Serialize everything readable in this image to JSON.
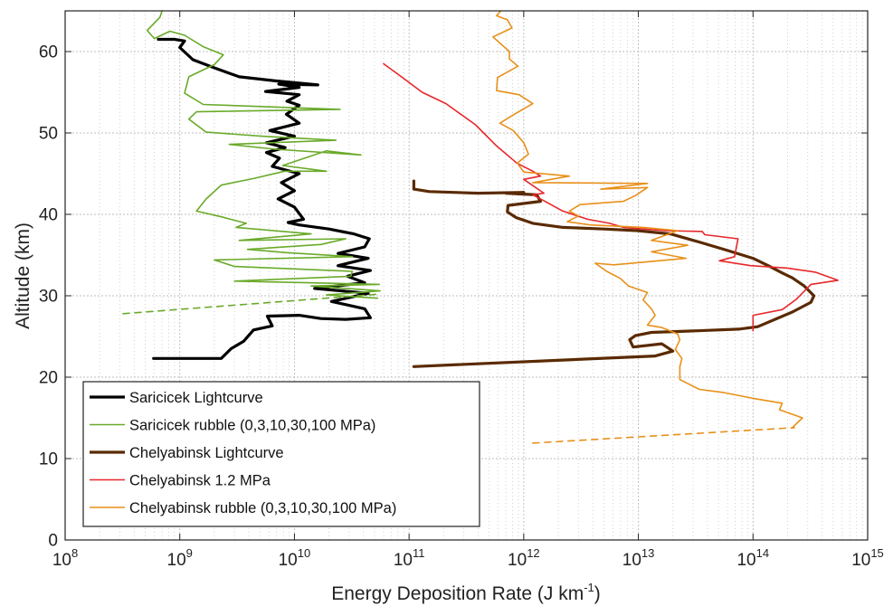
{
  "chart_data": {
    "type": "line",
    "title": "",
    "xlabel": "Energy Deposition Rate (J km",
    "xlabel_sup": "-1",
    "xlabel_suffix": ")",
    "ylabel": "Altitude (km)",
    "xscale": "log",
    "xlim": [
      100000000.0,
      1000000000000000.0
    ],
    "ylim": [
      0,
      65
    ],
    "grid": "minor-x-dotted",
    "legend_position": "lower-left",
    "x_tick_labels": [
      {
        "base": "10",
        "exp": "8"
      },
      {
        "base": "10",
        "exp": "9"
      },
      {
        "base": "10",
        "exp": "10"
      },
      {
        "base": "10",
        "exp": "11"
      },
      {
        "base": "10",
        "exp": "12"
      },
      {
        "base": "10",
        "exp": "13"
      },
      {
        "base": "10",
        "exp": "14"
      },
      {
        "base": "10",
        "exp": "15"
      }
    ],
    "y_tick_labels": [
      "0",
      "10",
      "20",
      "30",
      "40",
      "50",
      "60"
    ],
    "series": [
      {
        "name": "Saricicek Lightcurve",
        "color": "#000000",
        "width": 3.2,
        "dash": "",
        "points": [
          [
            590000000.0,
            22.3
          ],
          [
            2300000000.0,
            22.3
          ],
          [
            2800000000.0,
            23.5
          ],
          [
            3600000000.0,
            24.4
          ],
          [
            4400000000.0,
            25.8
          ],
          [
            6400000000.0,
            26.3
          ],
          [
            5800000000.0,
            27.5
          ],
          [
            11000000000.0,
            27.6
          ],
          [
            17000000000.0,
            27.2
          ],
          [
            28000000000.0,
            27.1
          ],
          [
            46000000000.0,
            27.3
          ],
          [
            41000000000.0,
            28.4
          ],
          [
            21000000000.0,
            29.3
          ],
          [
            44000000000.0,
            30.3
          ],
          [
            15000000000.0,
            30.9
          ],
          [
            41000000000.0,
            31.6
          ],
          [
            29000000000.0,
            32.4
          ],
          [
            46000000000.0,
            33.1
          ],
          [
            24000000000.0,
            33.7
          ],
          [
            44000000000.0,
            34.6
          ],
          [
            24000000000.0,
            35.2
          ],
          [
            41000000000.0,
            36.0
          ],
          [
            45000000000.0,
            37.0
          ],
          [
            33000000000.0,
            37.6
          ],
          [
            20000000000.0,
            38.2
          ],
          [
            11000000000.0,
            38.7
          ],
          [
            8800000000.0,
            39.0
          ],
          [
            12000000000.0,
            39.4
          ],
          [
            10000000000.0,
            40.9
          ],
          [
            7200000000.0,
            41.9
          ],
          [
            10000000000.0,
            42.9
          ],
          [
            7700000000.0,
            43.9
          ],
          [
            11000000000.0,
            45.0
          ],
          [
            6400000000.0,
            45.9
          ],
          [
            7400000000.0,
            46.9
          ],
          [
            5700000000.0,
            47.6
          ],
          [
            8300000000.0,
            48.2
          ],
          [
            5700000000.0,
            48.8
          ],
          [
            10000000000.0,
            49.6
          ],
          [
            6100000000.0,
            50.3
          ],
          [
            11000000000.0,
            51.2
          ],
          [
            8500000000.0,
            52.3
          ],
          [
            11000000000.0,
            53.4
          ],
          [
            8600000000.0,
            53.9
          ],
          [
            11000000000.0,
            54.7
          ],
          [
            5600000000.0,
            55.1
          ],
          [
            11000000000.0,
            55.6
          ],
          [
            7300000000.0,
            56.0
          ],
          [
            16000000000.0,
            55.9
          ],
          [
            6800000000.0,
            56.4
          ],
          [
            3300000000.0,
            56.9
          ],
          [
            2000000000.0,
            58.0
          ],
          [
            1300000000.0,
            59.0
          ],
          [
            1000000000.0,
            60.5
          ],
          [
            1100000000.0,
            61.3
          ],
          [
            900000000.0,
            61.5
          ],
          [
            650000000.0,
            61.5
          ]
        ]
      },
      {
        "name": "Saricicek rubble (0,3,10,30,100 MPa)",
        "color": "#6aaa2a",
        "width": 1.6,
        "dash": "",
        "points": [
          [
            53000000000.0,
            29.7
          ],
          [
            19000000000.0,
            30.1
          ],
          [
            56000000000.0,
            30.6
          ],
          [
            14000000000.0,
            31.2
          ],
          [
            55000000000.0,
            31.4
          ],
          [
            13000000000.0,
            31.6
          ],
          [
            3000000000.0,
            31.8
          ],
          [
            31000000000.0,
            32.4
          ],
          [
            32000000000.0,
            33.0
          ],
          [
            3000000000.0,
            33.6
          ],
          [
            2000000000.0,
            34.4
          ],
          [
            32000000000.0,
            34.8
          ],
          [
            8500000000.0,
            35.3
          ],
          [
            3900000000.0,
            35.7
          ],
          [
            17000000000.0,
            36.3
          ],
          [
            28000000000.0,
            37.0
          ],
          [
            3300000000.0,
            36.8
          ],
          [
            14000000000.0,
            37.6
          ],
          [
            3100000000.0,
            38.4
          ],
          [
            3800000000.0,
            38.9
          ],
          [
            2300000000.0,
            39.7
          ],
          [
            1400000000.0,
            40.4
          ],
          [
            1700000000.0,
            41.9
          ],
          [
            2300000000.0,
            43.6
          ],
          [
            4400000000.0,
            44.4
          ],
          [
            8200000000.0,
            45.3
          ],
          [
            19000000000.0,
            45.3
          ],
          [
            7900000000.0,
            46.0
          ],
          [
            19000000000.0,
            47.8
          ],
          [
            38000000000.0,
            47.3
          ],
          [
            6800000000.0,
            48.0
          ],
          [
            2700000000.0,
            48.6
          ],
          [
            23000000000.0,
            49.1
          ],
          [
            5200000000.0,
            49.6
          ],
          [
            1700000000.0,
            50.1
          ],
          [
            1200000000.0,
            51.7
          ],
          [
            1400000000.0,
            52.6
          ],
          [
            25000000000.0,
            52.9
          ],
          [
            1600000000.0,
            53.5
          ],
          [
            1100000000.0,
            54.9
          ],
          [
            1200000000.0,
            56.9
          ],
          [
            2000000000.0,
            58.4
          ],
          [
            2400000000.0,
            59.6
          ],
          [
            1600000000.0,
            60.6
          ],
          [
            1100000000.0,
            62.0
          ],
          [
            820000000.0,
            62.5
          ],
          [
            600000000.0,
            61.6
          ],
          [
            520000000.0,
            62.6
          ],
          [
            670000000.0,
            64.2
          ],
          [
            700000000.0,
            65.0
          ]
        ]
      },
      {
        "name": "",
        "color": "#6aaa2a",
        "width": 1.6,
        "dash": "7,6",
        "points": [
          [
            320000000.0,
            27.8
          ],
          [
            55000000000.0,
            30.2
          ]
        ]
      },
      {
        "name": "Chelyabinsk Lightcurve",
        "color": "#5a2a00",
        "width": 3.2,
        "dash": "",
        "points": [
          [
            110000000000.0,
            21.3
          ],
          [
            14000000000000.0,
            22.6
          ],
          [
            20000000000000.0,
            23.2
          ],
          [
            16000000000000.0,
            24.1
          ],
          [
            9000000000000.0,
            23.7
          ],
          [
            8400000000000.0,
            24.6
          ],
          [
            9400000000000.0,
            25.1
          ],
          [
            13000000000000.0,
            25.5
          ],
          [
            33000000000000.0,
            25.7
          ],
          [
            75000000000000.0,
            25.9
          ],
          [
            110000000000000.0,
            26.2
          ],
          [
            220000000000000.0,
            28.0
          ],
          [
            320000000000000.0,
            29.2
          ],
          [
            340000000000000.0,
            30.0
          ],
          [
            280000000000000.0,
            31.2
          ],
          [
            220000000000000.0,
            32.2
          ],
          [
            180000000000000.0,
            32.8
          ],
          [
            140000000000000.0,
            33.6
          ],
          [
            100000000000000.0,
            34.6
          ],
          [
            59000000000000.0,
            35.6
          ],
          [
            34000000000000.0,
            36.6
          ],
          [
            19000000000000.0,
            37.6
          ],
          [
            9800000000000.0,
            38.0
          ],
          [
            5000000000000.0,
            38.2
          ],
          [
            2200000000000.0,
            38.4
          ],
          [
            1200000000000.0,
            38.9
          ],
          [
            860000000000.0,
            39.6
          ],
          [
            720000000000.0,
            40.3
          ],
          [
            730000000000.0,
            41.1
          ],
          [
            1400000000000.0,
            41.6
          ],
          [
            1300000000000.0,
            42.4
          ],
          [
            700000000000.0,
            42.6
          ],
          [
            1000000000000.0,
            42.7
          ],
          [
            400000000000.0,
            42.6
          ],
          [
            150000000000.0,
            42.8
          ],
          [
            110000000000.0,
            43.1
          ],
          [
            110000000000.0,
            44.1
          ]
        ]
      },
      {
        "name": "Chelyabinsk 1.2 MPa",
        "color": "#e8272b",
        "width": 1.6,
        "dash": "",
        "points": [
          [
            100000000000000.0,
            25.7
          ],
          [
            100000000000000.0,
            27.6
          ],
          [
            180000000000000.0,
            28.3
          ],
          [
            240000000000000.0,
            29.6
          ],
          [
            320000000000000.0,
            31.4
          ],
          [
            550000000000000.0,
            31.9
          ],
          [
            350000000000000.0,
            32.9
          ],
          [
            200000000000000.0,
            33.4
          ],
          [
            95000000000000.0,
            33.7
          ],
          [
            51000000000000.0,
            34.3
          ],
          [
            69000000000000.0,
            34.8
          ],
          [
            74000000000000.0,
            37.0
          ],
          [
            38000000000000.0,
            37.5
          ],
          [
            36000000000000.0,
            37.9
          ],
          [
            17000000000000.0,
            38.0
          ],
          [
            7400000000000.0,
            38.4
          ],
          [
            5600000000000.0,
            38.9
          ],
          [
            3600000000000.0,
            39.4
          ],
          [
            2200000000000.0,
            40.4
          ],
          [
            1400000000000.0,
            41.9
          ],
          [
            1200000000000.0,
            42.4
          ],
          [
            1500000000000.0,
            42.6
          ],
          [
            1000000000000.0,
            44.3
          ],
          [
            1400000000000.0,
            44.7
          ],
          [
            1200000000000.0,
            45.3
          ],
          [
            870000000000.0,
            46.3
          ],
          [
            580000000000.0,
            48.4
          ],
          [
            380000000000.0,
            51.0
          ],
          [
            210000000000.0,
            53.6
          ],
          [
            130000000000.0,
            55.0
          ],
          [
            84000000000.0,
            57.0
          ],
          [
            60000000000.0,
            58.5
          ]
        ]
      },
      {
        "name": "Chelyabinsk rubble (0,3,10,30,100 MPa)",
        "color": "#e8901a",
        "width": 1.6,
        "dash": "",
        "points": [
          [
            220000000000000.0,
            13.8
          ],
          [
            270000000000000.0,
            15.0
          ],
          [
            170000000000000.0,
            16.0
          ],
          [
            180000000000000.0,
            16.8
          ],
          [
            100000000000000.0,
            17.4
          ],
          [
            56000000000000.0,
            18.1
          ],
          [
            34000000000000.0,
            18.5
          ],
          [
            23000000000000.0,
            19.7
          ],
          [
            23000000000000.0,
            21.3
          ],
          [
            24000000000000.0,
            22.3
          ],
          [
            21000000000000.0,
            23.4
          ],
          [
            23000000000000.0,
            24.6
          ],
          [
            22000000000000.0,
            25.3
          ],
          [
            16000000000000.0,
            26.1
          ],
          [
            12000000000000.0,
            26.4
          ],
          [
            14000000000000.0,
            27.6
          ],
          [
            13000000000000.0,
            28.4
          ],
          [
            11000000000000.0,
            29.5
          ],
          [
            12000000000000.0,
            30.4
          ],
          [
            8200000000000.0,
            31.2
          ],
          [
            7000000000000.0,
            32.1
          ],
          [
            5300000000000.0,
            33.0
          ],
          [
            4200000000000.0,
            34.0
          ],
          [
            6100000000000.0,
            33.8
          ],
          [
            26000000000000.0,
            34.6
          ],
          [
            13000000000000.0,
            35.4
          ],
          [
            27000000000000.0,
            36.2
          ],
          [
            13000000000000.0,
            36.8
          ],
          [
            22000000000000.0,
            38.0
          ],
          [
            11000000000000.0,
            38.4
          ],
          [
            3800000000000.0,
            38.7
          ],
          [
            2400000000000.0,
            39.1
          ],
          [
            3000000000000.0,
            39.8
          ],
          [
            2500000000000.0,
            40.4
          ],
          [
            3100000000000.0,
            41.2
          ],
          [
            7400000000000.0,
            41.6
          ],
          [
            9400000000000.0,
            42.3
          ],
          [
            12000000000000.0,
            43.3
          ],
          [
            4700000000000.0,
            43.1
          ],
          [
            12000000000000.0,
            43.8
          ],
          [
            1200000000000.0,
            43.9
          ],
          [
            2500000000000.0,
            44.7
          ],
          [
            1000000000000.0,
            45.2
          ],
          [
            880000000000.0,
            46.3
          ],
          [
            1100000000000.0,
            47.4
          ],
          [
            1000000000000.0,
            48.8
          ],
          [
            810000000000.0,
            50.3
          ],
          [
            620000000000.0,
            51.2
          ],
          [
            850000000000.0,
            52.4
          ],
          [
            1200000000000.0,
            53.6
          ],
          [
            910000000000.0,
            54.7
          ],
          [
            580000000000.0,
            55.2
          ],
          [
            590000000000.0,
            56.8
          ],
          [
            890000000000.0,
            58.2
          ],
          [
            750000000000.0,
            59.1
          ],
          [
            750000000000.0,
            60.0
          ],
          [
            540000000000.0,
            61.8
          ],
          [
            790000000000.0,
            62.9
          ],
          [
            720000000000.0,
            63.9
          ],
          [
            580000000000.0,
            64.4
          ],
          [
            630000000000.0,
            65.0
          ]
        ]
      },
      {
        "name": "",
        "color": "#e8901a",
        "width": 1.6,
        "dash": "7,6",
        "points": [
          [
            1200000000000.0,
            11.9
          ],
          [
            230000000000000.0,
            13.8
          ]
        ]
      }
    ],
    "legend": [
      {
        "label": "Saricicek Lightcurve",
        "color": "#000000",
        "width": 3.2
      },
      {
        "label": "Saricicek rubble (0,3,10,30,100 MPa)",
        "color": "#6aaa2a",
        "width": 1.6
      },
      {
        "label": "Chelyabinsk Lightcurve",
        "color": "#5a2a00",
        "width": 3.2
      },
      {
        "label": "Chelyabinsk 1.2 MPa",
        "color": "#e8272b",
        "width": 1.6
      },
      {
        "label": "Chelyabinsk rubble (0,3,10,30,100 MPa)",
        "color": "#e8901a",
        "width": 1.6
      }
    ]
  }
}
